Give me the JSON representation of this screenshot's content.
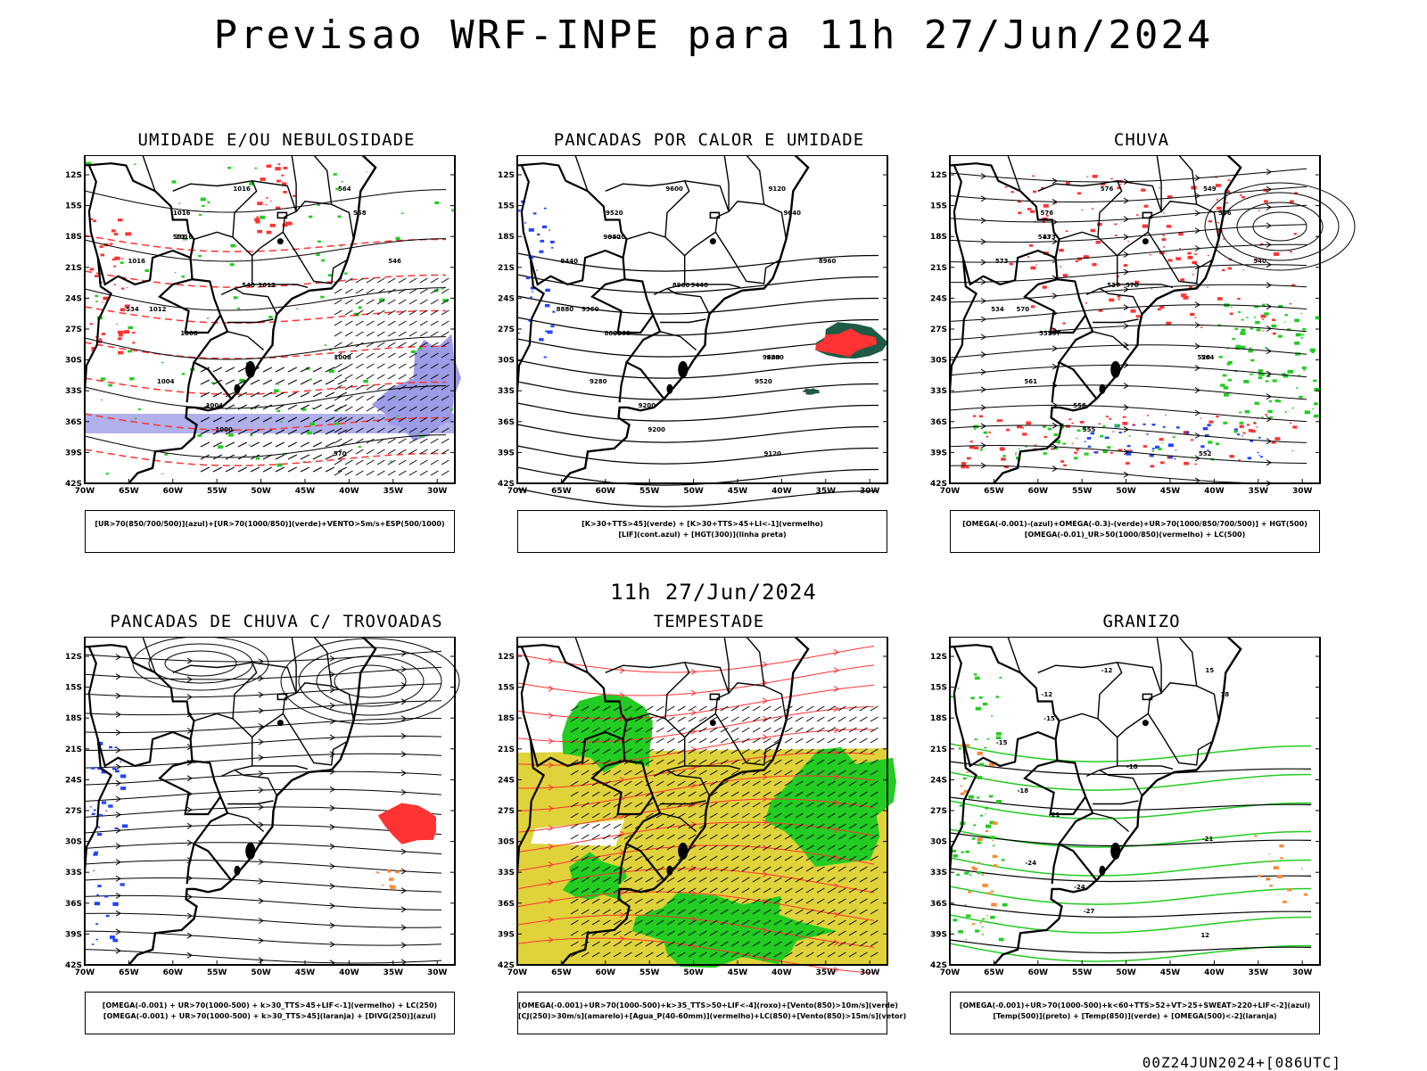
{
  "title": "Previsao WRF-INPE  para 11h 27/Jun/2024",
  "subtitle": "11h 27/Jun/2024",
  "footer": "00Z24JUN2024+[086UTC]",
  "axes": {
    "lat_labels": [
      "12S",
      "15S",
      "18S",
      "21S",
      "24S",
      "27S",
      "30S",
      "33S",
      "36S",
      "39S",
      "42S"
    ],
    "lon_labels": [
      "70W",
      "65W",
      "60W",
      "55W",
      "50W",
      "45W",
      "40W",
      "35W",
      "30W"
    ]
  },
  "colors": {
    "green": "#22cc22",
    "red": "#ff3333",
    "blue": "#2244ff",
    "lavender": "#9c9ce6",
    "yellow": "#e0d23a",
    "orange": "#ff8833",
    "darkgreen": "#1e5a46"
  },
  "panels": [
    {
      "id": "umidade",
      "title": "UMIDADE E/OU NEBULOSIDADE",
      "legend": [
        "[UR>70(850/700/500)](azul)+[UR>70(1000/850)](verde)+VENTO>5m/s+ESP(500/1000)"
      ],
      "contour_labels": [
        "1016",
        "1016",
        "1016",
        "1016",
        "1012",
        "1012",
        "1008",
        "1008",
        "1004",
        "1004",
        "1000",
        "570",
        "564",
        "558",
        "552",
        "546",
        "540",
        "534"
      ]
    },
    {
      "id": "pancadas-calor",
      "title": "PANCADAS POR CALOR E UMIDADE",
      "legend": [
        "[K>30+TTS>45](verde) + [K>30+TTS>45+LI<-1](vermelho)",
        "[LIF](cont.azul) + [HGT(300)](linha preta)"
      ],
      "contour_labels": [
        "9600",
        "9520",
        "9520",
        "9440",
        "9440",
        "9360",
        "9360",
        "9280",
        "9280",
        "9200",
        "9200",
        "9120",
        "9120",
        "9040",
        "9040",
        "8960",
        "8960",
        "8880",
        "8800",
        "9600",
        "9520"
      ]
    },
    {
      "id": "chuva",
      "title": "CHUVA",
      "legend": [
        "[OMEGA(-0.001)-(azul)+OMEGA(-0.3)-(verde)+UR>70(1000/850/700/500)] + HGT(500)",
        "[OMEGA(-0.01)_UR>50(1000/850)(vermelho) + LC(500)"
      ],
      "contour_labels": [
        "576",
        "576",
        "573",
        "573",
        "570",
        "570",
        "567",
        "564",
        "561",
        "558",
        "555",
        "552",
        "549",
        "546",
        "543",
        "540",
        "537",
        "534",
        "531",
        "528"
      ]
    },
    {
      "id": "trovoadas",
      "title": "PANCADAS DE CHUVA C/ TROVOADAS",
      "legend": [
        "[OMEGA(-0.001) + UR>70(1000-500) + k>30_TTS>45+LIF<-1](vermelho) + LC(250)",
        "[OMEGA(-0.001) + UR>70(1000-500) + k>30_TTS>45](laranja) + [DIVG(250)](azul)"
      ],
      "contour_labels": []
    },
    {
      "id": "tempestade",
      "title": "TEMPESTADE",
      "legend": [
        "[OMEGA(-0.001)+UR>70(1000-500)+k>35_TTS>50+LIF<-4](roxo)+[Vento(850)>10m/s](verde)",
        "[CJ(250)>30m/s](amarelo)+[Agua_P(40-60mm)](vermelho)+LC(850)+[Vento(850)>15m/s](vetor)"
      ],
      "contour_labels": []
    },
    {
      "id": "granizo",
      "title": "GRANIZO",
      "legend": [
        "[OMEGA(-0.001)+UR>70(1000-500)+k<60+TTS>52+VT>25+SWEAT>220+LIF<-2](azul)",
        "[Temp(500)](preto) + [Temp(850)](verde) + [OMEGA(500)<-2](laranja)"
      ],
      "contour_labels": [
        "-12",
        "-12",
        "-15",
        "-15",
        "-18",
        "-18",
        "-21",
        "-21",
        "-24",
        "-24",
        "-27",
        "12",
        "15",
        "18"
      ]
    }
  ]
}
